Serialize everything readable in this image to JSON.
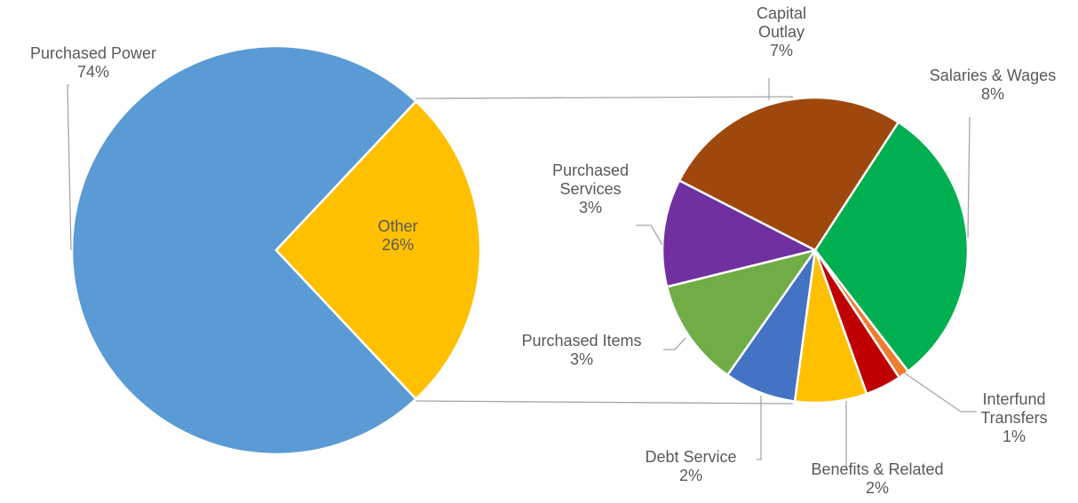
{
  "chart_data": [
    {
      "type": "pie",
      "categories": [
        "Purchased Power",
        "Other"
      ],
      "values": [
        74,
        26
      ],
      "value_labels": [
        "74%",
        "26%"
      ],
      "colors": [
        "#5b9bd5",
        "#ffc000"
      ]
    },
    {
      "type": "pie",
      "categories": [
        "Salaries & Wages",
        null,
        "Interfund Transfers",
        "Benefits & Related",
        "Debt Service",
        "Purchased Items",
        "Purchased Services",
        "Capital Outlay"
      ],
      "values": [
        8,
        0.3,
        1,
        2,
        2,
        3,
        3,
        7
      ],
      "value_labels": [
        "8%",
        null,
        "1%",
        "2%",
        "2%",
        "3%",
        "3%",
        "7%"
      ],
      "colors": [
        "#00b050",
        "#ed7d31",
        "#c00000",
        "#ffc000",
        "#4472c4",
        "#70ad47",
        "#7030a0",
        "#9e480e"
      ]
    }
  ]
}
